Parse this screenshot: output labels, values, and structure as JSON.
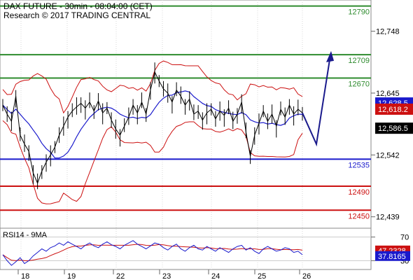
{
  "chart_data": {
    "type": "line",
    "title": "DAX FUTURE - 30min - 08:04:00 (CET)",
    "subtitle": "Research © 2017 TRADING CENTRAL",
    "x_labels": [
      "18",
      "19",
      "22",
      "23",
      "24",
      "25",
      "26"
    ],
    "main_panel": {
      "y_ticks": [
        "12,748",
        "12,645",
        "12,542",
        "12,439"
      ],
      "y_tick_values": [
        12748,
        12645,
        12542,
        12439
      ],
      "ylim": [
        12420,
        12800
      ],
      "levels": [
        {
          "label": "12790",
          "value": 12790,
          "color": "#2e8b2e"
        },
        {
          "label": "12709",
          "value": 12709,
          "color": "#2e8b2e"
        },
        {
          "label": "12670",
          "value": 12670,
          "color": "#2e8b2e"
        },
        {
          "label": "12535",
          "value": 12535,
          "color": "#1a1acc"
        },
        {
          "label": "12490",
          "value": 12490,
          "color": "#cc1010"
        },
        {
          "label": "12450",
          "value": 12450,
          "color": "#cc1010"
        }
      ],
      "price_tags": [
        {
          "label": "12,628.5",
          "value": 12628.5,
          "color": "#1a1acc"
        },
        {
          "label": "12,618.2",
          "value": 12618.2,
          "color": "#cc1010"
        },
        {
          "label": "12,586.5",
          "value": 12586.5,
          "color": "#000000"
        }
      ],
      "price_series": [
        12625,
        12610,
        12598,
        12640,
        12575,
        12560,
        12548,
        12512,
        12495,
        12515,
        12530,
        12542,
        12555,
        12575,
        12590,
        12605,
        12615,
        12622,
        12628,
        12620,
        12630,
        12615,
        12632,
        12612,
        12620,
        12600,
        12585,
        12575,
        12590,
        12605,
        12625,
        12612,
        12630,
        12610,
        12650,
        12680,
        12665,
        12652,
        12645,
        12630,
        12650,
        12640,
        12625,
        12635,
        12610,
        12615,
        12600,
        12612,
        12618,
        12602,
        12615,
        12608,
        12620,
        12598,
        12610,
        12630,
        12580,
        12540,
        12575,
        12595,
        12615,
        12598,
        12610,
        12590,
        12618,
        12605,
        12625,
        12610,
        12618,
        12612
      ],
      "series_colors": {
        "price": "#000000",
        "ma": "#1a1acc",
        "bands": "#cc1010",
        "forecast": "#1a1a8c"
      }
    },
    "rsi_panel": {
      "label": "RSI14 - 9MA",
      "y_ticks": [
        "70",
        "30"
      ],
      "ylim": [
        15,
        85
      ],
      "price_tags": [
        {
          "label": "47.2328",
          "value": 47.2328,
          "color": "#cc1010"
        },
        {
          "label": "37.8165",
          "value": 37.8165,
          "color": "#1a1acc"
        }
      ],
      "rsi_series": [
        40,
        30,
        22,
        28,
        35,
        25,
        30,
        38,
        44,
        50,
        46,
        52,
        55,
        60,
        56,
        62,
        58,
        54,
        50,
        56,
        60,
        55,
        52,
        58,
        62,
        57,
        54,
        50,
        56,
        60,
        64,
        58,
        54,
        50,
        55,
        60,
        58,
        52,
        48,
        54,
        58,
        50,
        46,
        52,
        56,
        50,
        48,
        54,
        50,
        46,
        52,
        48,
        44,
        50,
        54,
        56,
        48,
        52,
        46,
        42,
        50,
        54,
        50,
        46,
        48,
        52,
        50,
        44,
        46,
        40
      ]
    }
  }
}
